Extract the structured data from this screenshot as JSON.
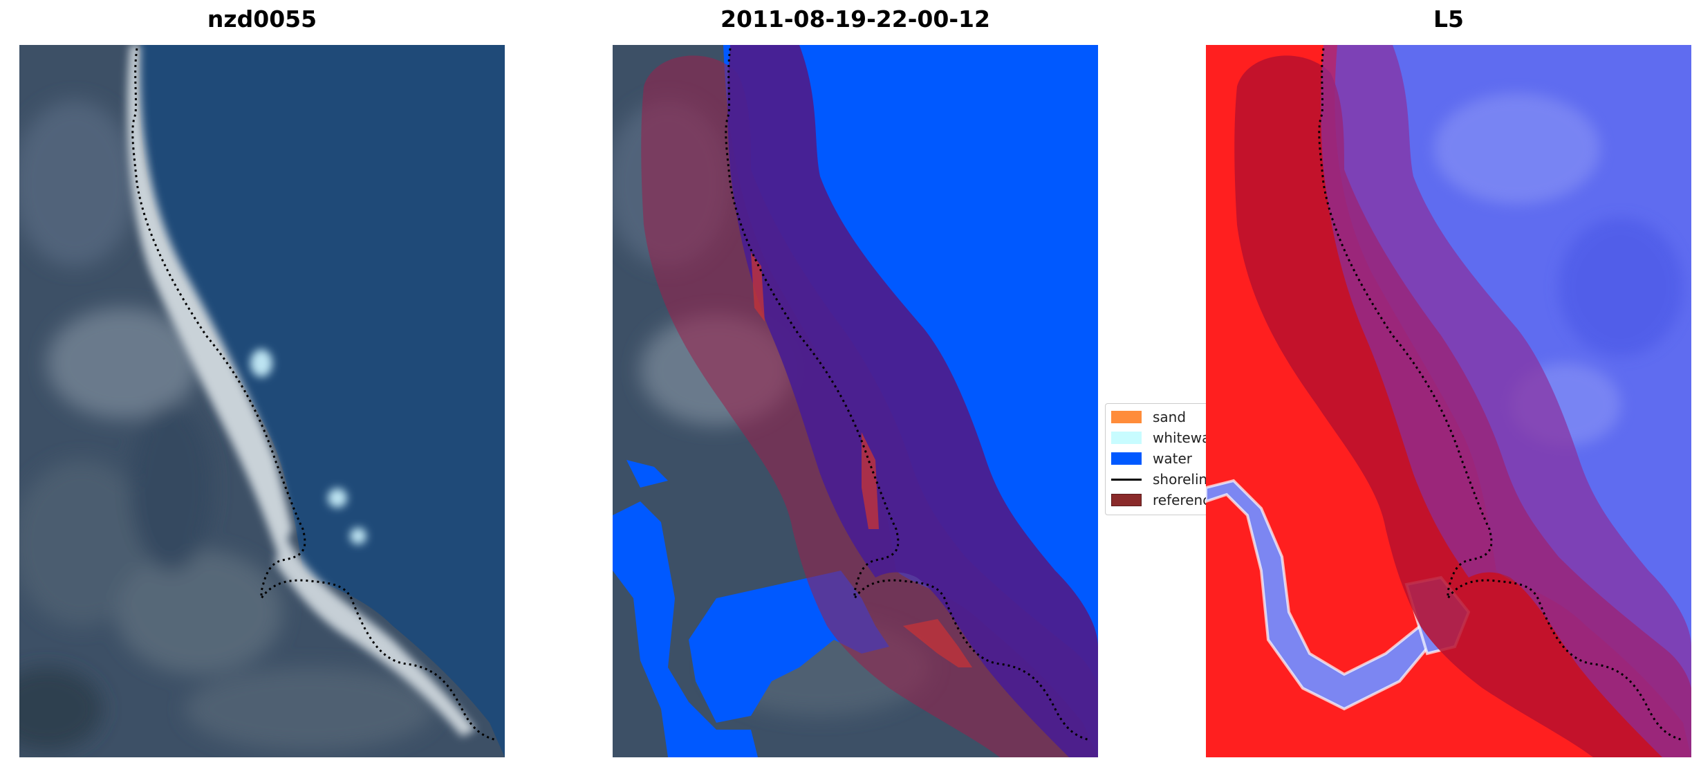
{
  "panels": [
    {
      "title": "nzd0055"
    },
    {
      "title": "2011-08-19-22-00-12"
    },
    {
      "title": "L5"
    }
  ],
  "legend": {
    "items": [
      {
        "label": "sand",
        "color": "#ff8c3a",
        "kind": "patch"
      },
      {
        "label": "whitewater",
        "color": "#c8fcff",
        "kind": "patch"
      },
      {
        "label": "water",
        "color": "#0059ff",
        "kind": "patch"
      },
      {
        "label": "shoreline",
        "color": "#000000",
        "kind": "line"
      },
      {
        "label": "reference",
        "color": "#8a2a2a",
        "kind": "patch"
      }
    ]
  },
  "colors": {
    "water_class": "#0059ff",
    "reference_overlay": "#9a1f4a",
    "land_index": "#ff1a1a",
    "water_index": "#5560ee"
  }
}
